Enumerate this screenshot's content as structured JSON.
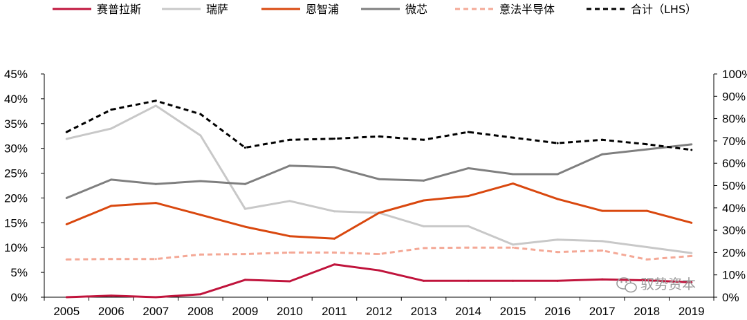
{
  "chart_data": {
    "type": "line",
    "title": "",
    "xlabel": "",
    "ylabel": "",
    "categories": [
      "2005",
      "2006",
      "2007",
      "2008",
      "2009",
      "2010",
      "2011",
      "2012",
      "2013",
      "2014",
      "2015",
      "2016",
      "2017",
      "2018",
      "2019"
    ],
    "ylim_left": [
      0,
      45
    ],
    "ylim_right": [
      0,
      100
    ],
    "yticks_left": [
      "0%",
      "5%",
      "10%",
      "15%",
      "20%",
      "25%",
      "30%",
      "35%",
      "40%",
      "45%"
    ],
    "yticks_right": [
      "0%",
      "10%",
      "20%",
      "30%",
      "40%",
      "50%",
      "60%",
      "70%",
      "80%",
      "90%",
      "100%"
    ],
    "grid": false,
    "legend_position": "top",
    "series": [
      {
        "name": "赛普拉斯",
        "axis": "left",
        "color": "#c0143c",
        "dashed": false,
        "values": [
          0.0,
          0.3,
          0.0,
          0.6,
          3.5,
          3.2,
          6.6,
          5.4,
          3.3,
          3.3,
          3.3,
          3.3,
          3.6,
          3.4,
          3.0
        ]
      },
      {
        "name": "瑞萨",
        "axis": "left",
        "color": "#c8c8c8",
        "dashed": false,
        "values": [
          31.9,
          34.0,
          38.6,
          32.6,
          17.8,
          19.4,
          17.3,
          17.0,
          14.3,
          14.3,
          10.6,
          11.6,
          11.3,
          10.1,
          8.9
        ]
      },
      {
        "name": "恩智浦",
        "axis": "left",
        "color": "#d9480f",
        "dashed": false,
        "values": [
          14.7,
          18.4,
          19.0,
          16.6,
          14.2,
          12.3,
          11.8,
          17.0,
          19.5,
          20.4,
          22.9,
          19.8,
          17.4,
          17.4,
          15.0
        ]
      },
      {
        "name": "微芯",
        "axis": "left",
        "color": "#7f7f7f",
        "dashed": false,
        "values": [
          20.0,
          23.7,
          22.8,
          23.4,
          22.8,
          26.5,
          26.2,
          23.8,
          23.5,
          26.0,
          24.8,
          24.8,
          28.8,
          29.8,
          30.8
        ]
      },
      {
        "name": "意法半导体",
        "axis": "left",
        "color": "#f4a896",
        "dashed": true,
        "values": [
          7.6,
          7.7,
          7.7,
          8.6,
          8.7,
          9.0,
          9.0,
          8.7,
          9.9,
          10.0,
          10.0,
          9.1,
          9.4,
          7.6,
          8.3
        ]
      },
      {
        "name": "合计（LHS）",
        "axis": "right",
        "color": "#000000",
        "dashed": true,
        "values": [
          74,
          84,
          88,
          82,
          67,
          70.5,
          71,
          72,
          70.5,
          74,
          71.5,
          69,
          70.5,
          68.5,
          66
        ]
      }
    ]
  },
  "watermark": {
    "text": "驭势资本"
  }
}
